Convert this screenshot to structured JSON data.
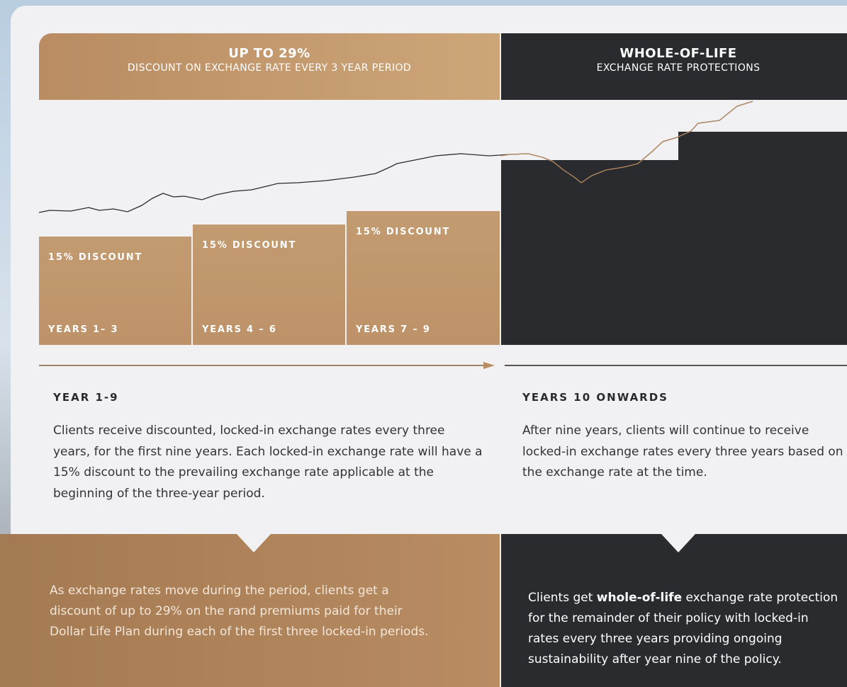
{
  "header": {
    "left": {
      "title": "UP TO 29%",
      "subtitle": "DISCOUNT ON EXCHANGE RATE EVERY 3 YEAR PERIOD"
    },
    "right": {
      "title": "WHOLE-OF-LIFE",
      "subtitle": "EXCHANGE RATE PROTECTIONS"
    }
  },
  "blocks": [
    {
      "discount": "15% DISCOUNT",
      "period": "YEARS 1– 3"
    },
    {
      "discount": "15% DISCOUNT",
      "period": "YEARS 4 – 6"
    },
    {
      "discount": "15% DISCOUNT",
      "period": "YEARS 7 – 9"
    }
  ],
  "sections": [
    {
      "title": "YEAR 1-9",
      "text": "Clients receive discounted, locked-in exchange rates every three years, for the first nine years. Each locked-in exchange rate will have a 15% discount to the prevailing exchange rate applicable at the beginning of the three-year period."
    },
    {
      "title": "YEARS 10 ONWARDS",
      "text": "After nine years, clients will continue to receive locked-in exchange rates every three years based on the exchange rate at the time."
    }
  ],
  "footer": {
    "left": "As exchange rates move during the period, clients get a discount of up to 29% on the rand premiums paid for their Dollar Life Plan during each of the first three locked-in periods.",
    "right": {
      "before": "Clients get ",
      "bold": "whole-of-life",
      "after": " exchange rate protection for the remainder of their policy with locked-in rates every three years providing ongoing sustainability after year nine of the policy."
    }
  }
}
